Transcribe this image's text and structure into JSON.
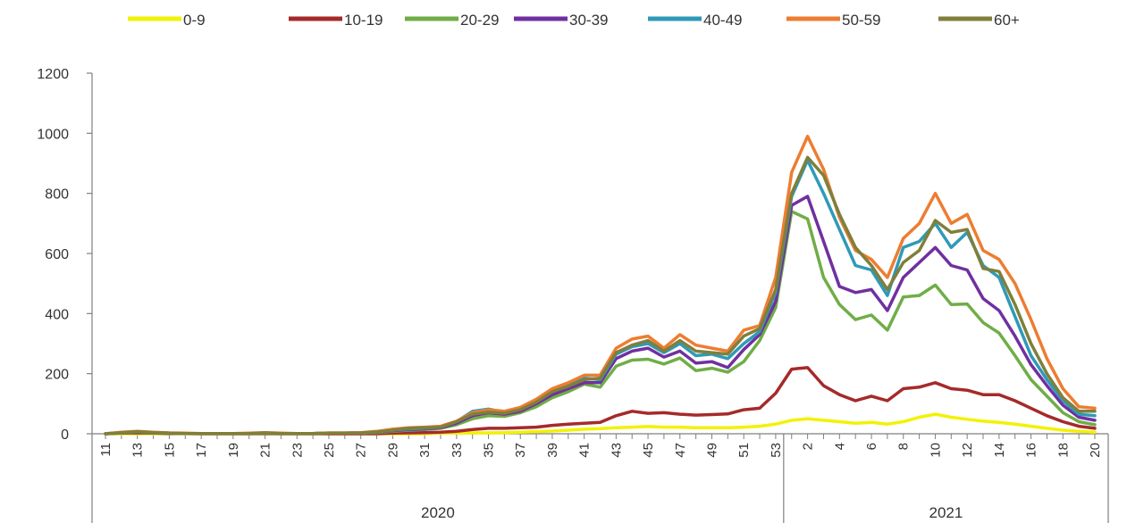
{
  "chart_data": {
    "type": "line",
    "title": "",
    "xlabel": "",
    "ylabel": "",
    "ylim": [
      0,
      1200
    ],
    "yticks": [
      0,
      200,
      400,
      600,
      800,
      1000,
      1200
    ],
    "grid": false,
    "legend_position": "top",
    "x_weeks": [
      11,
      12,
      13,
      14,
      15,
      16,
      17,
      18,
      19,
      20,
      21,
      22,
      23,
      24,
      25,
      26,
      27,
      28,
      29,
      30,
      31,
      32,
      33,
      34,
      35,
      36,
      37,
      38,
      39,
      40,
      41,
      42,
      43,
      44,
      45,
      46,
      47,
      48,
      49,
      50,
      51,
      52,
      53,
      1,
      2,
      3,
      4,
      5,
      6,
      7,
      8,
      9,
      10,
      11,
      12,
      13,
      14,
      15,
      16,
      17,
      18,
      19,
      20
    ],
    "x_tick_labels": [
      "11",
      "13",
      "15",
      "17",
      "19",
      "21",
      "23",
      "25",
      "27",
      "29",
      "31",
      "33",
      "35",
      "37",
      "39",
      "41",
      "43",
      "45",
      "47",
      "49",
      "51",
      "53",
      "2",
      "4",
      "6",
      "8",
      "10",
      "12",
      "14",
      "16",
      "18",
      "20"
    ],
    "years": [
      {
        "label": "2020",
        "start_week_index": 0,
        "end_week_index": 42
      },
      {
        "label": "2021",
        "start_week_index": 43,
        "end_week_index": 62
      }
    ],
    "series": [
      {
        "name": "0-9",
        "color": "#f2f205",
        "values": [
          0,
          0,
          0,
          0,
          0,
          0,
          0,
          0,
          0,
          0,
          0,
          0,
          0,
          0,
          0,
          0,
          0,
          0,
          0,
          0,
          0,
          2,
          2,
          3,
          3,
          4,
          5,
          7,
          9,
          12,
          15,
          17,
          20,
          22,
          24,
          22,
          22,
          20,
          20,
          20,
          22,
          25,
          32,
          45,
          50,
          45,
          40,
          35,
          38,
          32,
          40,
          55,
          65,
          55,
          48,
          42,
          38,
          32,
          25,
          18,
          12,
          8,
          5
        ]
      },
      {
        "name": "10-19",
        "color": "#a52a2a",
        "values": [
          0,
          2,
          3,
          2,
          1,
          1,
          0,
          0,
          0,
          0,
          1,
          0,
          0,
          0,
          0,
          0,
          0,
          0,
          2,
          3,
          4,
          5,
          8,
          14,
          18,
          18,
          20,
          22,
          28,
          32,
          35,
          38,
          60,
          75,
          68,
          70,
          65,
          62,
          64,
          66,
          80,
          85,
          135,
          215,
          220,
          160,
          130,
          110,
          125,
          110,
          150,
          155,
          170,
          150,
          145,
          130,
          130,
          110,
          85,
          60,
          40,
          25,
          18
        ]
      },
      {
        "name": "20-29",
        "color": "#70ad47",
        "values": [
          0,
          3,
          5,
          3,
          2,
          1,
          1,
          1,
          1,
          1,
          2,
          1,
          1,
          1,
          2,
          2,
          2,
          4,
          8,
          12,
          14,
          18,
          30,
          50,
          60,
          58,
          70,
          90,
          120,
          140,
          165,
          155,
          225,
          245,
          248,
          232,
          252,
          210,
          218,
          205,
          240,
          310,
          420,
          740,
          715,
          520,
          430,
          380,
          395,
          345,
          455,
          460,
          495,
          430,
          432,
          370,
          335,
          260,
          180,
          125,
          70,
          40,
          30
        ]
      },
      {
        "name": "30-39",
        "color": "#7030a0",
        "values": [
          0,
          4,
          6,
          4,
          2,
          1,
          1,
          1,
          1,
          1,
          3,
          1,
          1,
          1,
          2,
          2,
          3,
          5,
          10,
          14,
          16,
          20,
          35,
          60,
          70,
          65,
          75,
          100,
          130,
          150,
          170,
          170,
          250,
          275,
          285,
          255,
          275,
          235,
          240,
          220,
          280,
          330,
          440,
          760,
          790,
          640,
          490,
          470,
          480,
          410,
          520,
          570,
          620,
          560,
          545,
          450,
          410,
          325,
          230,
          160,
          95,
          55,
          45
        ]
      },
      {
        "name": "40-49",
        "color": "#2e9ab8",
        "values": [
          0,
          4,
          7,
          4,
          2,
          1,
          1,
          1,
          1,
          1,
          3,
          1,
          1,
          1,
          2,
          2,
          3,
          6,
          12,
          16,
          18,
          22,
          40,
          75,
          82,
          72,
          85,
          110,
          140,
          160,
          185,
          180,
          265,
          290,
          300,
          270,
          300,
          260,
          265,
          250,
          300,
          340,
          470,
          790,
          910,
          800,
          680,
          560,
          545,
          460,
          620,
          640,
          700,
          620,
          670,
          560,
          520,
          390,
          260,
          180,
          110,
          65,
          60
        ]
      },
      {
        "name": "50-59",
        "color": "#ed7d31",
        "values": [
          0,
          5,
          8,
          5,
          3,
          2,
          1,
          1,
          1,
          2,
          4,
          2,
          1,
          1,
          3,
          3,
          4,
          8,
          15,
          20,
          22,
          25,
          42,
          70,
          80,
          75,
          88,
          115,
          150,
          170,
          195,
          195,
          285,
          315,
          325,
          285,
          330,
          295,
          285,
          275,
          345,
          360,
          520,
          870,
          990,
          880,
          720,
          610,
          580,
          520,
          650,
          700,
          800,
          700,
          730,
          610,
          580,
          500,
          380,
          250,
          150,
          90,
          85
        ]
      },
      {
        "name": "60+",
        "color": "#7f7f3c",
        "values": [
          0,
          4,
          7,
          4,
          2,
          1,
          1,
          1,
          1,
          1,
          3,
          1,
          1,
          1,
          2,
          2,
          3,
          6,
          12,
          18,
          20,
          22,
          40,
          65,
          72,
          68,
          80,
          105,
          140,
          158,
          180,
          185,
          270,
          295,
          310,
          275,
          310,
          275,
          270,
          265,
          325,
          350,
          480,
          800,
          920,
          860,
          730,
          620,
          560,
          480,
          570,
          610,
          710,
          670,
          680,
          550,
          540,
          430,
          300,
          200,
          120,
          75,
          75
        ]
      }
    ]
  }
}
